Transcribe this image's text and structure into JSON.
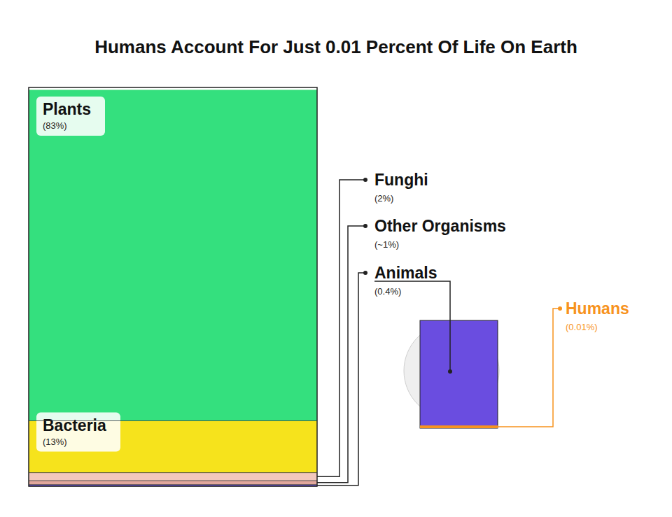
{
  "chart_data": {
    "type": "bar",
    "title": "Humans Account For Just 0.01 Percent Of Life On Earth",
    "categories": [
      null
    ],
    "stacked": true,
    "data_labels": true,
    "tick_labels": false,
    "ylim": [
      0,
      100
    ],
    "series": [
      {
        "name": "Plants",
        "color": "#34e07e",
        "values": [
          83
        ],
        "value_labels": [
          "(83%)"
        ]
      },
      {
        "name": "Bacteria",
        "color": "#f6e31c",
        "values": [
          13
        ],
        "value_labels": [
          "(13%)"
        ]
      },
      {
        "name": "Funghi",
        "color": "#f3c7bd",
        "values": [
          2
        ],
        "value_labels": [
          "(2%)"
        ]
      },
      {
        "name": "Other Organisms",
        "color": "#e2a79c",
        "values": [
          1
        ],
        "value_labels": [
          "(~1%)"
        ]
      },
      {
        "name": "Animals",
        "color": "#6a4de0",
        "values": [
          0.4
        ],
        "value_labels": [
          "(0.4%)"
        ]
      },
      {
        "name": "Humans",
        "color": "#f7931e",
        "values": [
          0.01
        ],
        "value_labels": [
          "(0.01%)"
        ]
      }
    ]
  }
}
